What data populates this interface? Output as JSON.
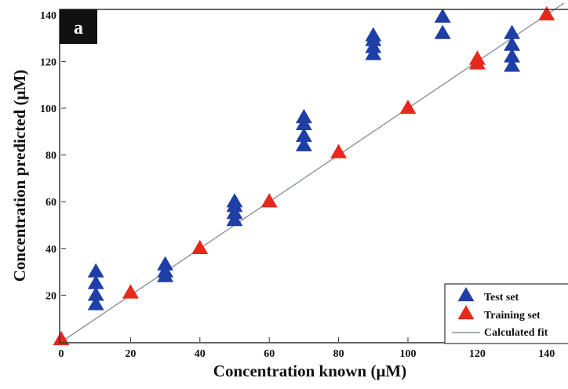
{
  "panel_label": "a",
  "chart_data": {
    "type": "scatter",
    "xlabel": "Concentration known (μM)",
    "ylabel": "Concentration predicted (μM)",
    "xlim": [
      0,
      145
    ],
    "ylim": [
      0,
      145
    ],
    "xticks": [
      "0",
      "20",
      "40",
      "60",
      "80",
      "100",
      "120",
      "140"
    ],
    "yticks": [
      "20",
      "40",
      "60",
      "80",
      "100",
      "120",
      "140"
    ],
    "grid": false,
    "legend_position": "bottom-right",
    "series": [
      {
        "name": "Test set",
        "marker": "triangle",
        "color": "#1f3ea6",
        "points": [
          [
            10,
            16
          ],
          [
            10,
            20
          ],
          [
            10,
            25
          ],
          [
            10,
            30
          ],
          [
            30,
            28
          ],
          [
            30,
            30
          ],
          [
            30,
            33
          ],
          [
            50,
            52
          ],
          [
            50,
            55
          ],
          [
            50,
            58
          ],
          [
            50,
            60
          ],
          [
            70,
            84
          ],
          [
            70,
            88
          ],
          [
            70,
            93
          ],
          [
            70,
            96
          ],
          [
            90,
            123
          ],
          [
            90,
            126
          ],
          [
            90,
            129
          ],
          [
            90,
            131
          ],
          [
            110,
            132
          ],
          [
            110,
            139
          ],
          [
            130,
            118
          ],
          [
            130,
            122
          ],
          [
            130,
            127
          ],
          [
            130,
            132
          ]
        ]
      },
      {
        "name": "Training set",
        "marker": "triangle",
        "color": "#e8281c",
        "points": [
          [
            0,
            1
          ],
          [
            20,
            21
          ],
          [
            40,
            40
          ],
          [
            60,
            60
          ],
          [
            80,
            81
          ],
          [
            100,
            100
          ],
          [
            120,
            119
          ],
          [
            120,
            121
          ],
          [
            140,
            140
          ]
        ]
      },
      {
        "name": "Calculated fit",
        "marker": "line",
        "color": "#8a9099",
        "points": [
          [
            0,
            0
          ],
          [
            145,
            145
          ]
        ]
      }
    ]
  }
}
